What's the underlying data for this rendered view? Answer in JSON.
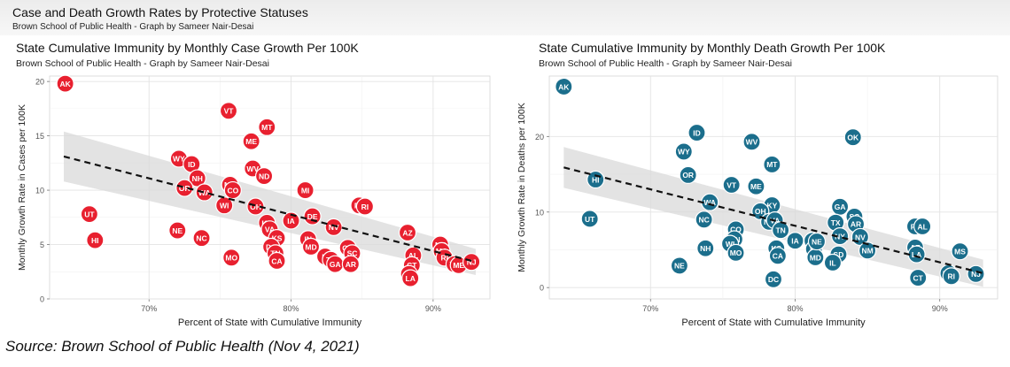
{
  "header": {
    "title": "Case and Death Growth Rates by Protective Statuses",
    "subtitle": "Brown School of Public Health - Graph by Sameer Nair-Desai"
  },
  "source": "Source: Brown School of Public Health (Nov 4, 2021)",
  "chart_data": [
    {
      "type": "scatter",
      "title": "State Cumulative Immunity by Monthly Case Growth Per 100K",
      "subtitle": "Brown School of Public Health - Graph by Sameer Nair-Desai",
      "xlabel": "Percent of State with Cumulative Immunity",
      "ylabel": "Monthly Growth Rate in Cases per 100K",
      "xlim": [
        63,
        94
      ],
      "ylim": [
        0,
        20.5
      ],
      "xticks": [
        70,
        80,
        90
      ],
      "xtick_labels": [
        "70%",
        "80%",
        "90%"
      ],
      "yticks": [
        0,
        5,
        10,
        15,
        20
      ],
      "grid": true,
      "point_color": "#e8202f",
      "trend": {
        "style": "dashed",
        "x": [
          64,
          93
        ],
        "y": [
          13.1,
          3.4
        ],
        "band_x": [
          64,
          93
        ],
        "band_upper": [
          15.4,
          4.6
        ],
        "band_lower": [
          10.8,
          2.2
        ]
      },
      "points": [
        {
          "label": "AK",
          "x": 64.1,
          "y": 19.8
        },
        {
          "label": "UT",
          "x": 65.8,
          "y": 7.8
        },
        {
          "label": "HI",
          "x": 66.2,
          "y": 5.4
        },
        {
          "label": "NE",
          "x": 72.0,
          "y": 6.3
        },
        {
          "label": "NC",
          "x": 73.7,
          "y": 5.6
        },
        {
          "label": "WY",
          "x": 72.1,
          "y": 12.9
        },
        {
          "label": "ID",
          "x": 73.0,
          "y": 12.4
        },
        {
          "label": "NH",
          "x": 73.4,
          "y": 11.1
        },
        {
          "label": "OR",
          "x": 72.5,
          "y": 10.2
        },
        {
          "label": "WA",
          "x": 73.9,
          "y": 9.8
        },
        {
          "label": "VT",
          "x": 75.6,
          "y": 17.3
        },
        {
          "label": "MN",
          "x": 75.7,
          "y": 10.5
        },
        {
          "label": "CO",
          "x": 75.9,
          "y": 10.0
        },
        {
          "label": "WI",
          "x": 75.3,
          "y": 8.6
        },
        {
          "label": "MO",
          "x": 75.8,
          "y": 3.8
        },
        {
          "label": "ME",
          "x": 77.2,
          "y": 14.5
        },
        {
          "label": "MT",
          "x": 78.3,
          "y": 15.8
        },
        {
          "label": "WV",
          "x": 77.3,
          "y": 12.0
        },
        {
          "label": "ND",
          "x": 78.1,
          "y": 11.3
        },
        {
          "label": "OH",
          "x": 77.5,
          "y": 8.5
        },
        {
          "label": "KY",
          "x": 78.3,
          "y": 7.0
        },
        {
          "label": "VA",
          "x": 78.5,
          "y": 6.4
        },
        {
          "label": "KS",
          "x": 79.0,
          "y": 5.6
        },
        {
          "label": "DC",
          "x": 78.6,
          "y": 4.8
        },
        {
          "label": "TN",
          "x": 78.9,
          "y": 4.2
        },
        {
          "label": "CA",
          "x": 79.0,
          "y": 3.5
        },
        {
          "label": "MI",
          "x": 81.0,
          "y": 10.0
        },
        {
          "label": "IA",
          "x": 80.0,
          "y": 7.2
        },
        {
          "label": "DE",
          "x": 81.5,
          "y": 7.6
        },
        {
          "label": "IN",
          "x": 81.2,
          "y": 5.5
        },
        {
          "label": "MD",
          "x": 81.4,
          "y": 4.8
        },
        {
          "label": "NV",
          "x": 83.0,
          "y": 6.6
        },
        {
          "label": "IL",
          "x": 82.4,
          "y": 3.9
        },
        {
          "label": "TX",
          "x": 82.8,
          "y": 3.6
        },
        {
          "label": "GA",
          "x": 83.1,
          "y": 3.2
        },
        {
          "label": "OK",
          "x": 84.0,
          "y": 4.7
        },
        {
          "label": "SC",
          "x": 84.3,
          "y": 4.2
        },
        {
          "label": "AR",
          "x": 84.2,
          "y": 3.2
        },
        {
          "label": "PA",
          "x": 84.8,
          "y": 8.6
        },
        {
          "label": "RI",
          "x": 85.2,
          "y": 8.5
        },
        {
          "label": "AZ",
          "x": 88.2,
          "y": 6.1
        },
        {
          "label": "AL",
          "x": 88.6,
          "y": 4.0
        },
        {
          "label": "CT",
          "x": 88.5,
          "y": 3.1
        },
        {
          "label": "FL",
          "x": 88.3,
          "y": 2.3
        },
        {
          "label": "LA",
          "x": 88.4,
          "y": 1.9
        },
        {
          "label": "NY",
          "x": 90.5,
          "y": 5.0
        },
        {
          "label": "MA",
          "x": 90.6,
          "y": 4.4
        },
        {
          "label": "RI",
          "x": 90.8,
          "y": 3.8
        },
        {
          "label": "VT",
          "x": 91.5,
          "y": 3.2
        },
        {
          "label": "ME",
          "x": 91.8,
          "y": 3.1
        },
        {
          "label": "NJ",
          "x": 92.7,
          "y": 3.4
        }
      ]
    },
    {
      "type": "scatter",
      "title": "State Cumulative Immunity by Monthly Death Growth Per 100K",
      "subtitle": "Brown School of Public Health - Graph by Sameer Nair-Desai",
      "xlabel": "Percent of State with Cumulative Immunity",
      "ylabel": "Monthly Growth Rate in Deaths per 100K",
      "xlim": [
        63,
        94
      ],
      "ylim": [
        -1.5,
        28
      ],
      "xticks": [
        70,
        80,
        90
      ],
      "xtick_labels": [
        "70%",
        "80%",
        "90%"
      ],
      "yticks": [
        0,
        10,
        20
      ],
      "grid": true,
      "point_color": "#1b6e8c",
      "trend": {
        "style": "dashed",
        "x": [
          64,
          93
        ],
        "y": [
          15.9,
          1.9
        ],
        "band_x": [
          64,
          93
        ],
        "band_upper": [
          18.6,
          3.7
        ],
        "band_lower": [
          13.2,
          0.1
        ]
      },
      "points": [
        {
          "label": "AK",
          "x": 64.0,
          "y": 26.6
        },
        {
          "label": "UT",
          "x": 65.8,
          "y": 9.1
        },
        {
          "label": "HI",
          "x": 66.2,
          "y": 14.3
        },
        {
          "label": "NE",
          "x": 72.0,
          "y": 2.9
        },
        {
          "label": "ID",
          "x": 73.2,
          "y": 20.5
        },
        {
          "label": "WY",
          "x": 72.3,
          "y": 18.0
        },
        {
          "label": "OR",
          "x": 72.6,
          "y": 14.9
        },
        {
          "label": "VT",
          "x": 75.6,
          "y": 13.6
        },
        {
          "label": "ME",
          "x": 77.3,
          "y": 13.4
        },
        {
          "label": "WA",
          "x": 74.1,
          "y": 11.3
        },
        {
          "label": "NC",
          "x": 73.7,
          "y": 9.0
        },
        {
          "label": "NH",
          "x": 73.8,
          "y": 5.2
        },
        {
          "label": "CO",
          "x": 75.9,
          "y": 7.7
        },
        {
          "label": "MN",
          "x": 75.8,
          "y": 6.4
        },
        {
          "label": "WI",
          "x": 75.5,
          "y": 5.8
        },
        {
          "label": "MO",
          "x": 75.9,
          "y": 4.6
        },
        {
          "label": "WV",
          "x": 77.0,
          "y": 19.3
        },
        {
          "label": "MT",
          "x": 78.4,
          "y": 16.3
        },
        {
          "label": "KY",
          "x": 78.4,
          "y": 10.9
        },
        {
          "label": "OH",
          "x": 77.6,
          "y": 10.1
        },
        {
          "label": "ND",
          "x": 78.2,
          "y": 8.7
        },
        {
          "label": "VA",
          "x": 78.6,
          "y": 8.9
        },
        {
          "label": "TN",
          "x": 79.0,
          "y": 7.6
        },
        {
          "label": "KS",
          "x": 78.7,
          "y": 5.2
        },
        {
          "label": "CA",
          "x": 78.8,
          "y": 4.2
        },
        {
          "label": "DC",
          "x": 78.5,
          "y": 1.1
        },
        {
          "label": "IA",
          "x": 80.0,
          "y": 6.2
        },
        {
          "label": "IN",
          "x": 81.2,
          "y": 6.2
        },
        {
          "label": "MI",
          "x": 81.3,
          "y": 5.1
        },
        {
          "label": "MD",
          "x": 81.4,
          "y": 4.0
        },
        {
          "label": "NE",
          "x": 81.5,
          "y": 6.1
        },
        {
          "label": "SD",
          "x": 83.0,
          "y": 4.4
        },
        {
          "label": "IL",
          "x": 82.6,
          "y": 3.3
        },
        {
          "label": "OK",
          "x": 84.0,
          "y": 19.9
        },
        {
          "label": "GA",
          "x": 83.1,
          "y": 10.7
        },
        {
          "label": "SC",
          "x": 84.1,
          "y": 9.4
        },
        {
          "label": "TX",
          "x": 82.8,
          "y": 8.6
        },
        {
          "label": "AR",
          "x": 84.2,
          "y": 8.4
        },
        {
          "label": "NY",
          "x": 83.1,
          "y": 6.8
        },
        {
          "label": "NV",
          "x": 84.5,
          "y": 6.7
        },
        {
          "label": "NM",
          "x": 85.0,
          "y": 4.9
        },
        {
          "label": "FL",
          "x": 88.3,
          "y": 8.1
        },
        {
          "label": "AL",
          "x": 88.8,
          "y": 8.1
        },
        {
          "label": "AZ",
          "x": 88.3,
          "y": 5.3
        },
        {
          "label": "LA",
          "x": 88.4,
          "y": 4.4
        },
        {
          "label": "CT",
          "x": 88.5,
          "y": 1.3
        },
        {
          "label": "MS",
          "x": 91.4,
          "y": 4.8
        },
        {
          "label": "MA",
          "x": 90.6,
          "y": 1.9
        },
        {
          "label": "RI",
          "x": 90.8,
          "y": 1.5
        },
        {
          "label": "NJ",
          "x": 92.5,
          "y": 1.8
        }
      ]
    }
  ]
}
